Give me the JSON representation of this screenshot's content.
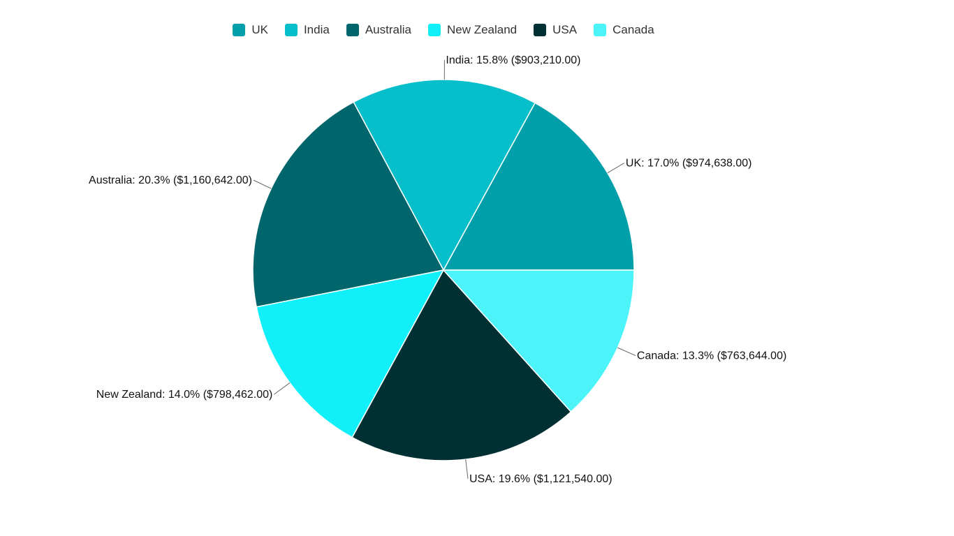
{
  "chart_data": {
    "type": "pie",
    "slices": [
      {
        "name": "UK",
        "percent": 17.0,
        "value": 974638.0,
        "percent_label": "17.0%",
        "value_label": "$974,638.00",
        "color": "#009FAA"
      },
      {
        "name": "India",
        "percent": 15.8,
        "value": 903210.0,
        "percent_label": "15.8%",
        "value_label": "$903,210.00",
        "color": "#06BFCA"
      },
      {
        "name": "Australia",
        "percent": 20.3,
        "value": 1160642.0,
        "percent_label": "20.3%",
        "value_label": "$1,160,642.00",
        "color": "#00666B"
      },
      {
        "name": "New Zealand",
        "percent": 14.0,
        "value": 798462.0,
        "percent_label": "14.0%",
        "value_label": "$798,462.00",
        "color": "#11EFF9"
      },
      {
        "name": "USA",
        "percent": 19.6,
        "value": 1121540.0,
        "percent_label": "19.6%",
        "value_label": "$1,121,540.00",
        "color": "#003033"
      },
      {
        "name": "Canada",
        "percent": 13.3,
        "value": 763644.0,
        "percent_label": "13.3%",
        "value_label": "$763,644.00",
        "color": "#4CF4FA"
      }
    ],
    "legend_position": "top-center",
    "slice_order": "counterclockwise from 3 o'clock"
  }
}
